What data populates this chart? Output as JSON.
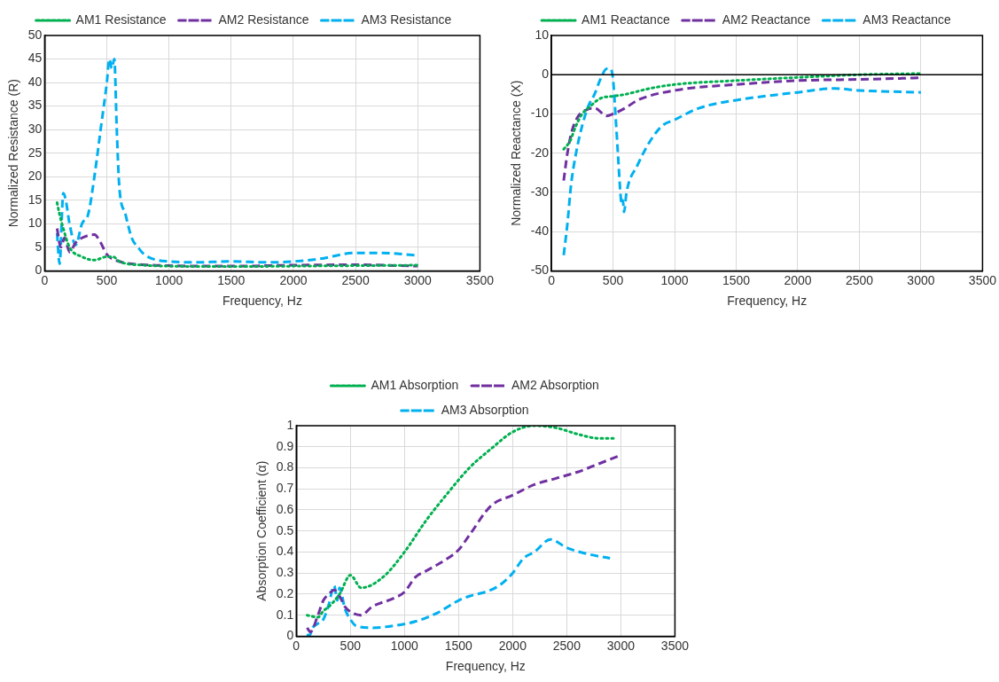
{
  "chart_data": [
    {
      "type": "line",
      "xlabel": "Frequency, Hz",
      "ylabel": "Normalized Resistance (R)",
      "xlim": [
        0,
        3500
      ],
      "xticks": [
        0,
        500,
        1000,
        1500,
        2000,
        2500,
        3000,
        3500
      ],
      "ylim": [
        0,
        50
      ],
      "yticks": [
        0,
        5,
        10,
        15,
        20,
        25,
        30,
        35,
        40,
        45,
        50
      ],
      "grid": true,
      "legend": "top",
      "marker": "none",
      "series": [
        {
          "name": "AM1 Resistance",
          "color": "#00b050",
          "line_style": "dotted",
          "x": [
            100,
            120,
            150,
            200,
            300,
            400,
            500,
            550,
            600,
            800,
            1000,
            1500,
            2000,
            2500,
            3000
          ],
          "values": [
            14.5,
            12,
            9,
            5,
            3,
            2.3,
            3,
            3,
            2,
            1.2,
            1,
            0.9,
            1,
            1.1,
            1.2
          ]
        },
        {
          "name": "AM2 Resistance",
          "color": "#7030a0",
          "line_style": "dashed",
          "x": [
            100,
            130,
            160,
            200,
            250,
            300,
            400,
            450,
            500,
            600,
            800,
            1000,
            1500,
            2000,
            2500,
            3000
          ],
          "values": [
            9,
            5,
            7,
            4,
            6,
            7,
            7.7,
            6,
            3.5,
            2,
            1.3,
            1.1,
            1,
            1.2,
            1.3,
            1
          ]
        },
        {
          "name": "AM3 Resistance",
          "color": "#00b0f0",
          "line_style": "dashed",
          "x": [
            100,
            120,
            150,
            170,
            200,
            250,
            300,
            350,
            400,
            450,
            500,
            520,
            540,
            560,
            580,
            600,
            650,
            700,
            750,
            800,
            900,
            1000,
            1200,
            1500,
            1800,
            2000,
            2200,
            2500,
            2700,
            3000
          ],
          "values": [
            8,
            1.5,
            16.5,
            15,
            10,
            5.5,
            10,
            12,
            20,
            30,
            40,
            45,
            43,
            45,
            30,
            18,
            12,
            7,
            5,
            3.5,
            2.3,
            2,
            1.8,
            2,
            1.8,
            2,
            2.5,
            3.8,
            3.8,
            3.3
          ]
        }
      ]
    },
    {
      "type": "line",
      "xlabel": "Frequency, Hz",
      "ylabel": "Normalized Reactance (X)",
      "xlim": [
        0,
        3500
      ],
      "xticks": [
        0,
        500,
        1000,
        1500,
        2000,
        2500,
        3000,
        3500
      ],
      "ylim": [
        -50,
        10
      ],
      "yticks": [
        -50,
        -40,
        -30,
        -20,
        -10,
        0,
        10
      ],
      "grid": true,
      "legend": "top",
      "marker": "none",
      "ref_lines": [
        {
          "axis": "y",
          "value": 0,
          "color": "#000000"
        }
      ],
      "series": [
        {
          "name": "AM1 Reactance",
          "color": "#00b050",
          "line_style": "dotted",
          "x": [
            100,
            150,
            200,
            250,
            300,
            400,
            500,
            600,
            800,
            1000,
            1500,
            2000,
            2500,
            3000
          ],
          "values": [
            -19,
            -17,
            -13,
            -10,
            -8.5,
            -6,
            -5.5,
            -5,
            -3.5,
            -2.5,
            -1.5,
            -0.7,
            0,
            0.3
          ]
        },
        {
          "name": "AM2 Reactance",
          "color": "#7030a0",
          "line_style": "dashed",
          "x": [
            100,
            130,
            170,
            220,
            280,
            350,
            450,
            500,
            600,
            700,
            1000,
            1500,
            2000,
            2500,
            3000
          ],
          "values": [
            -27,
            -20,
            -14,
            -10.5,
            -9,
            -8.5,
            -10.5,
            -10,
            -8.5,
            -6.5,
            -4,
            -2.5,
            -1.5,
            -1.2,
            -0.8
          ]
        },
        {
          "name": "AM3 Reactance",
          "color": "#00b0f0",
          "line_style": "dashed",
          "x": [
            100,
            130,
            160,
            200,
            250,
            300,
            350,
            400,
            450,
            480,
            500,
            520,
            540,
            560,
            570,
            580,
            590,
            610,
            700,
            800,
            900,
            1000,
            1200,
            1500,
            2000,
            2300,
            2500,
            3000
          ],
          "values": [
            -46,
            -38,
            -28,
            -20,
            -13,
            -8,
            -5,
            -1,
            1.5,
            1.5,
            -1,
            -10,
            -20,
            -30,
            -33,
            -32,
            -35,
            -30,
            -23,
            -17,
            -13,
            -11.5,
            -8.5,
            -6.5,
            -4.5,
            -3.5,
            -4,
            -4.5
          ]
        }
      ]
    },
    {
      "type": "line",
      "xlabel": "Frequency, Hz",
      "ylabel": "Absorption Coefficient (α)",
      "xlim": [
        0,
        3500
      ],
      "xticks": [
        0,
        500,
        1000,
        1500,
        2000,
        2500,
        3000,
        3500
      ],
      "ylim": [
        0,
        1
      ],
      "yticks": [
        0,
        0.1,
        0.2,
        0.3,
        0.4,
        0.5,
        0.6,
        0.7,
        0.8,
        0.9,
        1
      ],
      "grid": true,
      "legend": "top",
      "marker": "none",
      "series": [
        {
          "name": "AM1 Absorption",
          "color": "#00b050",
          "line_style": "dotted",
          "x": [
            100,
            200,
            250,
            300,
            400,
            500,
            600,
            800,
            1000,
            1200,
            1400,
            1600,
            1800,
            2000,
            2200,
            2400,
            2600,
            2800,
            2950
          ],
          "values": [
            0.1,
            0.09,
            0.12,
            0.14,
            0.2,
            0.29,
            0.23,
            0.28,
            0.4,
            0.55,
            0.68,
            0.8,
            0.89,
            0.97,
            1,
            0.99,
            0.96,
            0.94,
            0.94
          ]
        },
        {
          "name": "AM2 Absorption",
          "color": "#7030a0",
          "line_style": "dashed",
          "x": [
            100,
            130,
            200,
            250,
            300,
            350,
            400,
            450,
            520,
            600,
            700,
            900,
            1000,
            1100,
            1200,
            1400,
            1500,
            1600,
            1800,
            2000,
            2200,
            2400,
            2600,
            2800,
            3000
          ],
          "values": [
            0.04,
            0.02,
            0.1,
            0.17,
            0.2,
            0.22,
            0.19,
            0.14,
            0.11,
            0.1,
            0.14,
            0.18,
            0.21,
            0.28,
            0.31,
            0.37,
            0.41,
            0.48,
            0.62,
            0.67,
            0.72,
            0.75,
            0.78,
            0.82,
            0.86
          ]
        },
        {
          "name": "AM3 Absorption",
          "color": "#00b0f0",
          "line_style": "dashed",
          "x": [
            100,
            120,
            150,
            200,
            250,
            300,
            350,
            380,
            400,
            450,
            500,
            550,
            700,
            900,
            1100,
            1300,
            1500,
            1600,
            1800,
            1900,
            2000,
            2100,
            2200,
            2350,
            2500,
            2700,
            2900
          ],
          "values": [
            0.01,
            0,
            0.04,
            0.06,
            0.08,
            0.15,
            0.24,
            0.17,
            0.23,
            0.13,
            0.08,
            0.05,
            0.04,
            0.05,
            0.07,
            0.11,
            0.17,
            0.19,
            0.22,
            0.25,
            0.3,
            0.37,
            0.4,
            0.46,
            0.42,
            0.39,
            0.37
          ]
        }
      ]
    }
  ]
}
